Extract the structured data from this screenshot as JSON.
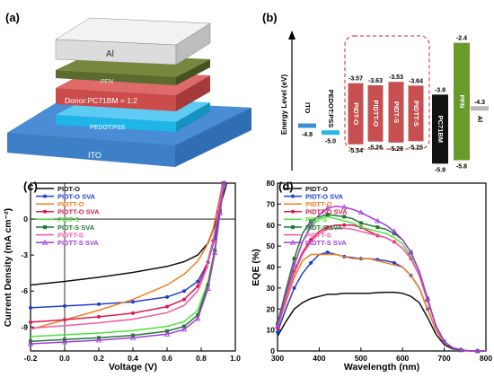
{
  "device": {
    "panel_label": "(a)",
    "layers": [
      {
        "id": "al",
        "label": "Al",
        "color": "#e2e2e2"
      },
      {
        "id": "pfn",
        "label": "PFN",
        "color": "#5b6b2f"
      },
      {
        "id": "active",
        "label": "Donor:PC71BM = 1:2",
        "color": "#cc4b4b"
      },
      {
        "id": "pedot",
        "label": "PEDOT:PSS",
        "color": "#1fb5e6"
      },
      {
        "id": "ito",
        "label": "ITO",
        "color": "#3d80c8"
      }
    ]
  },
  "energy": {
    "panel_label": "(b)",
    "ylabel": "Energy Level (eV)",
    "items": [
      {
        "label": "ITO",
        "upper": null,
        "lower": "-4.8",
        "color": "#3a8fd1",
        "kind": "line"
      },
      {
        "label": "PEDOT:PSS",
        "upper": null,
        "lower": "-5.0",
        "color": "#26b7ea",
        "kind": "line"
      },
      {
        "label": "PIDT-O",
        "upper": "-3.57",
        "lower": "-5.34",
        "color": "#c84f4f",
        "kind": "bar"
      },
      {
        "label": "PIDTT-O",
        "upper": "-3.63",
        "lower": "-5.26",
        "color": "#c84f4f",
        "kind": "bar"
      },
      {
        "label": "PIDT-S",
        "upper": "-3.53",
        "lower": "-5.29",
        "color": "#c84f4f",
        "kind": "bar"
      },
      {
        "label": "PIDTT-S",
        "upper": "-3.64",
        "lower": "-5.25",
        "color": "#c84f4f",
        "kind": "bar"
      },
      {
        "label": "PC71BM",
        "upper": "-3.9",
        "lower": "-5.9",
        "color": "#111111",
        "kind": "bar"
      },
      {
        "label": "PFN",
        "upper": "-2.4",
        "lower": "-5.8",
        "color": "#6a9a2a",
        "kind": "bar"
      },
      {
        "label": "Al",
        "upper": "-4.3",
        "lower": null,
        "color": "#b8b8b8",
        "kind": "line"
      }
    ]
  },
  "chart_data": [
    {
      "panel_label": "(c)",
      "type": "line",
      "xlabel": "Voltage (V)",
      "ylabel": "Current Density (mA cm⁻²)",
      "xlim": [
        -0.2,
        1.0
      ],
      "ylim": [
        -11,
        3
      ],
      "xticks": [
        "-0.2",
        "0.0",
        "0.2",
        "0.4",
        "0.6",
        "0.8",
        "1.0"
      ],
      "yticks": [
        "-9",
        "-6",
        "-3",
        "0"
      ],
      "ytick_values": [
        -9,
        -6,
        -3,
        0
      ],
      "legend": "top-left",
      "series": [
        {
          "name": "PIDT-O",
          "color": "#111111",
          "marker": "none",
          "x": [
            -0.2,
            0.0,
            0.2,
            0.4,
            0.6,
            0.7,
            0.78,
            0.84,
            0.88,
            0.92,
            0.95
          ],
          "y": [
            -5.5,
            -5.2,
            -4.85,
            -4.45,
            -3.95,
            -3.55,
            -3.0,
            -2.0,
            -0.5,
            1.5,
            3.0
          ]
        },
        {
          "name": "PIDT-O SVA",
          "color": "#1f3fd0",
          "marker": "circle",
          "x": [
            -0.2,
            0.0,
            0.2,
            0.4,
            0.6,
            0.7,
            0.78,
            0.84,
            0.88,
            0.91,
            0.935
          ],
          "y": [
            -7.4,
            -7.25,
            -7.1,
            -6.9,
            -6.5,
            -6.0,
            -5.2,
            -3.6,
            -1.6,
            0.8,
            3.0
          ]
        },
        {
          "name": "PIDTT-O",
          "color": "#f07e1e",
          "marker": "none",
          "x": [
            -0.2,
            0.0,
            0.2,
            0.4,
            0.6,
            0.7,
            0.78,
            0.83,
            0.87,
            0.9,
            0.925
          ],
          "y": [
            -9.2,
            -8.4,
            -7.6,
            -6.7,
            -5.5,
            -4.6,
            -3.5,
            -2.3,
            -0.8,
            1.2,
            3.0
          ]
        },
        {
          "name": "PIDTT-O SVA",
          "color": "#d91c4f",
          "marker": "circle",
          "x": [
            -0.2,
            0.0,
            0.2,
            0.4,
            0.6,
            0.7,
            0.78,
            0.83,
            0.87,
            0.9,
            0.925
          ],
          "y": [
            -8.6,
            -8.4,
            -8.15,
            -7.85,
            -7.3,
            -6.7,
            -5.6,
            -4.0,
            -1.8,
            0.6,
            3.0
          ]
        },
        {
          "name": "PIDT-S",
          "color": "#4fe03c",
          "marker": "none",
          "x": [
            -0.2,
            0.0,
            0.2,
            0.4,
            0.6,
            0.7,
            0.78,
            0.84,
            0.88,
            0.91,
            0.935
          ],
          "y": [
            -9.8,
            -9.65,
            -9.5,
            -9.3,
            -8.95,
            -8.55,
            -7.6,
            -5.2,
            -2.5,
            0.5,
            3.0
          ]
        },
        {
          "name": "PIDT-S SVA",
          "color": "#1f7a30",
          "marker": "square",
          "x": [
            -0.2,
            0.0,
            0.2,
            0.4,
            0.6,
            0.7,
            0.78,
            0.84,
            0.88,
            0.91,
            0.935
          ],
          "y": [
            -10.2,
            -10.05,
            -9.9,
            -9.7,
            -9.35,
            -8.95,
            -8.0,
            -5.5,
            -2.6,
            0.6,
            3.0
          ]
        },
        {
          "name": "PIDTT-S",
          "color": "#f25aa6",
          "marker": "none",
          "x": [
            -0.2,
            0.0,
            0.2,
            0.4,
            0.6,
            0.7,
            0.78,
            0.83,
            0.87,
            0.9,
            0.925
          ],
          "y": [
            -9.1,
            -8.9,
            -8.65,
            -8.35,
            -7.8,
            -7.2,
            -6.0,
            -4.2,
            -1.9,
            0.6,
            3.0
          ]
        },
        {
          "name": "PIDTT-S SVA",
          "color": "#a43bd8",
          "marker": "triangle",
          "x": [
            -0.2,
            0.0,
            0.2,
            0.4,
            0.6,
            0.7,
            0.78,
            0.84,
            0.88,
            0.91,
            0.935
          ],
          "y": [
            -10.4,
            -10.25,
            -10.1,
            -9.9,
            -9.6,
            -9.2,
            -8.3,
            -5.8,
            -2.8,
            0.5,
            3.0
          ]
        }
      ]
    },
    {
      "panel_label": "(d)",
      "type": "line",
      "xlabel": "Wavelength (nm)",
      "ylabel": "EQE (%)",
      "xlim": [
        300,
        800
      ],
      "ylim": [
        0,
        80
      ],
      "xticks": [
        "300",
        "400",
        "500",
        "600",
        "700",
        "800"
      ],
      "xtick_values": [
        300,
        400,
        500,
        600,
        700,
        800
      ],
      "yticks": [
        "0",
        "10",
        "20",
        "30",
        "40",
        "50",
        "60",
        "70",
        "80"
      ],
      "ytick_values": [
        0,
        10,
        20,
        30,
        40,
        50,
        60,
        70,
        80
      ],
      "legend": "top-left",
      "x": [
        300,
        320,
        340,
        360,
        380,
        400,
        420,
        440,
        460,
        480,
        500,
        520,
        540,
        560,
        580,
        600,
        620,
        640,
        660,
        680,
        700,
        720,
        740,
        760,
        780,
        800
      ],
      "series": [
        {
          "name": "PIDT-O",
          "color": "#111111",
          "marker": "none",
          "y": [
            7,
            14,
            20,
            23,
            25,
            26,
            27,
            27,
            27.5,
            27.5,
            27.5,
            27.5,
            27.8,
            28,
            28,
            27.5,
            26,
            23,
            16,
            8,
            3,
            1,
            0.5,
            0,
            0,
            0
          ]
        },
        {
          "name": "PIDT-O SVA",
          "color": "#1f3fd0",
          "marker": "circle",
          "y": [
            9,
            20,
            30,
            37,
            42,
            46,
            47,
            46,
            45,
            44.5,
            44,
            44,
            43.5,
            43,
            42,
            40,
            36,
            30,
            20,
            10,
            4,
            1.5,
            0.5,
            0,
            0,
            0
          ]
        },
        {
          "name": "PIDTT-O",
          "color": "#f07e1e",
          "marker": "none",
          "y": [
            11,
            23,
            35,
            43,
            46,
            46,
            46,
            46,
            45,
            44,
            44,
            44,
            43,
            42,
            41,
            40,
            36,
            30,
            20,
            10,
            4,
            1.5,
            0.5,
            0,
            0,
            0
          ]
        },
        {
          "name": "PIDTT-O SVA",
          "color": "#d91c4f",
          "marker": "circle",
          "y": [
            11,
            25,
            38,
            47,
            53,
            57,
            59,
            60,
            60,
            60,
            59,
            57,
            55,
            54,
            52,
            49,
            44,
            36,
            24,
            12,
            4.5,
            1.5,
            0.5,
            0,
            0,
            0
          ]
        },
        {
          "name": "PIDT-S",
          "color": "#4fe03c",
          "marker": "none",
          "y": [
            12,
            27,
            41,
            52,
            59,
            63,
            64,
            63,
            62,
            61,
            59,
            58,
            57,
            56,
            54,
            51,
            45,
            36,
            24,
            12,
            4.5,
            1.5,
            0.5,
            0,
            0,
            0
          ]
        },
        {
          "name": "PIDT-S SVA",
          "color": "#1f7a30",
          "marker": "square",
          "y": [
            13,
            29,
            44,
            56,
            62,
            64,
            65,
            64.5,
            64,
            63,
            61,
            60,
            59,
            58,
            56,
            53,
            47,
            38,
            25,
            12,
            4.5,
            1.5,
            0.5,
            0,
            0,
            0
          ]
        },
        {
          "name": "PIDTT-S",
          "color": "#f25aa6",
          "marker": "none",
          "y": [
            11,
            25,
            37,
            46,
            52,
            56,
            58,
            58.5,
            58.5,
            58,
            57,
            56,
            55,
            54,
            52,
            49,
            44,
            36,
            24,
            12,
            4.5,
            1.5,
            0.5,
            0,
            0,
            0
          ]
        },
        {
          "name": "PIDTT-S SVA",
          "color": "#a43bd8",
          "marker": "triangle",
          "y": [
            12,
            27,
            41,
            52,
            60,
            65,
            68,
            69,
            68.5,
            67.5,
            66,
            64,
            62,
            60,
            57,
            53,
            47,
            38,
            25,
            12,
            4.5,
            1.5,
            0.5,
            0,
            0,
            0
          ]
        }
      ]
    }
  ]
}
